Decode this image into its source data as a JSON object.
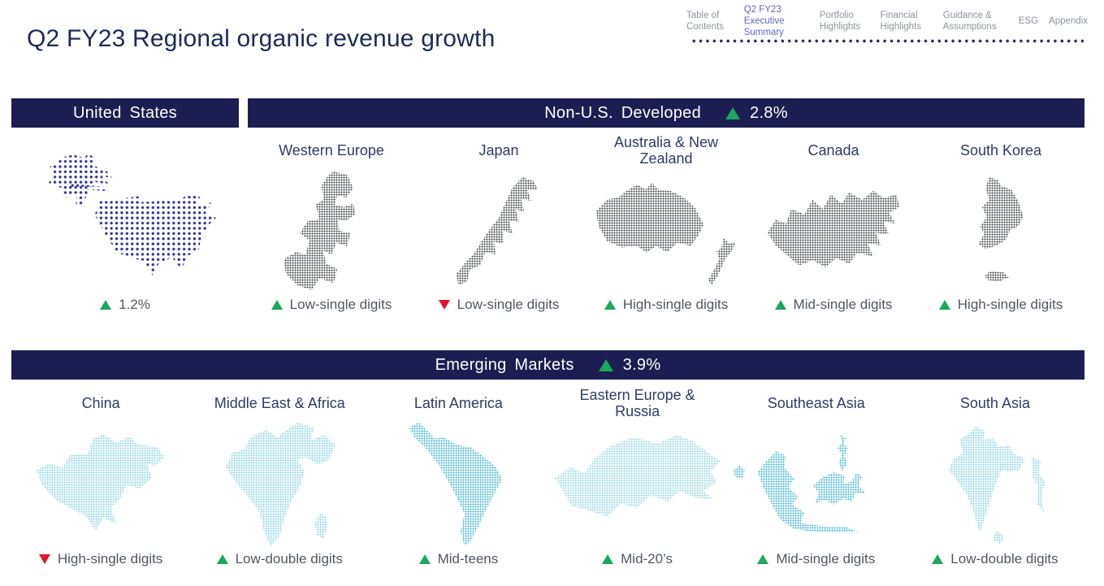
{
  "page": {
    "title": "Q2 FY23 Regional organic revenue growth"
  },
  "nav": {
    "items": [
      {
        "label": "Table of Contents",
        "active": false
      },
      {
        "label": "Q2 FY23 Executive Summary",
        "active": true
      },
      {
        "label": "Portfolio Highlights",
        "active": false
      },
      {
        "label": "Financial Highlights",
        "active": false
      },
      {
        "label": "Guidance & Assumptions",
        "active": false
      },
      {
        "label": "ESG",
        "active": false
      },
      {
        "label": "Appendix",
        "active": false
      }
    ]
  },
  "headers": {
    "united_states": {
      "label": "United States"
    },
    "non_us_developed": {
      "label": "Non-U.S. Developed",
      "value": "2.8%",
      "direction": "up"
    },
    "emerging_markets": {
      "label": "Emerging Markets",
      "value": "3.9%",
      "direction": "up"
    }
  },
  "regions": {
    "united_states": {
      "name": "United States",
      "growth": "1.2%",
      "direction": "up",
      "map": "us"
    },
    "non_us_developed": [
      {
        "name": "Western Europe",
        "growth": "Low-single digits",
        "direction": "up",
        "map": "weu"
      },
      {
        "name": "Japan",
        "growth": "Low-single digits",
        "direction": "down",
        "map": "japan"
      },
      {
        "name": "Australia & New Zealand",
        "growth": "High-single digits",
        "direction": "up",
        "map": "anz"
      },
      {
        "name": "Canada",
        "growth": "Mid-single digits",
        "direction": "up",
        "map": "canada"
      },
      {
        "name": "South Korea",
        "growth": "High-single digits",
        "direction": "up",
        "map": "kor"
      }
    ],
    "emerging_markets": [
      {
        "name": "China",
        "growth": "High-single digits",
        "direction": "down",
        "map": "china"
      },
      {
        "name": "Middle East & Africa",
        "growth": "Low-double digits",
        "direction": "up",
        "map": "mea"
      },
      {
        "name": "Latin America",
        "growth": "Mid-teens",
        "direction": "up",
        "map": "latam"
      },
      {
        "name": "Eastern Europe & Russia",
        "growth": "Mid-20’s",
        "direction": "up",
        "map": "eer"
      },
      {
        "name": "Southeast Asia",
        "growth": "Mid-single digits",
        "direction": "up",
        "map": "sea"
      },
      {
        "name": "South Asia",
        "growth": "Low-double digits",
        "direction": "up",
        "map": "sasia"
      }
    ]
  },
  "colors": {
    "header_bar_navy": "#1c1d52",
    "title_text": "#1d2a57",
    "region_label_text": "#2e3b66",
    "growth_text": "#515761",
    "positive_green": "#1ba75e",
    "negative_red": "#e0152f",
    "us_map_dots": "#32329b",
    "developed_map_dots": "#45484e",
    "emerging_map_dots_light": "#92d4e2",
    "emerging_map_dots_teal": "#47b7cc",
    "nav_active": "#6266c5",
    "nav_inactive": "#8e939d"
  }
}
